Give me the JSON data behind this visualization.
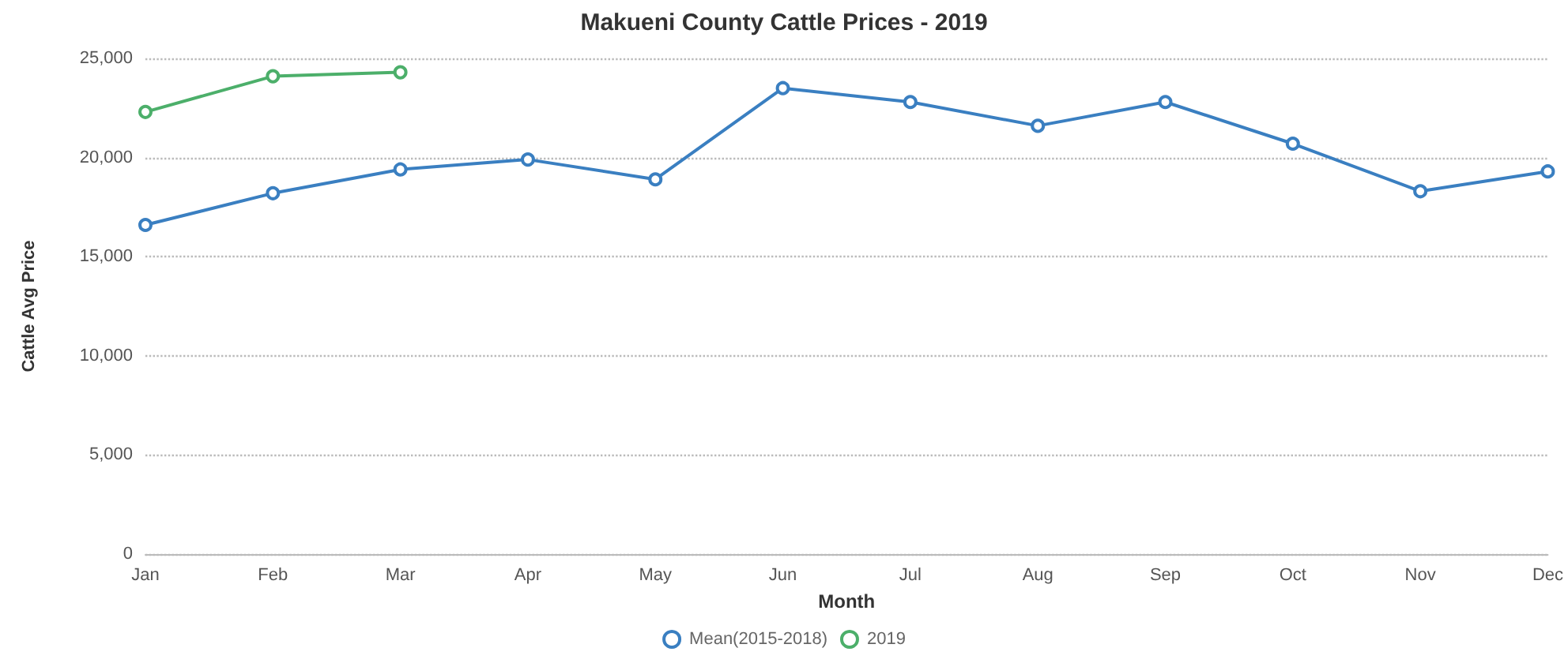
{
  "chart_data": {
    "type": "line",
    "title": "Makueni County Cattle Prices - 2019",
    "xlabel": "Month",
    "ylabel": "Cattle Avg Price",
    "categories": [
      "Jan",
      "Feb",
      "Mar",
      "Apr",
      "May",
      "Jun",
      "Jul",
      "Aug",
      "Sep",
      "Oct",
      "Nov",
      "Dec"
    ],
    "series": [
      {
        "name": "Mean(2015-2018)",
        "color": "#3a7fc1",
        "values": [
          16600,
          18200,
          19400,
          19900,
          18900,
          23500,
          22800,
          21600,
          22800,
          20700,
          18300,
          19300
        ]
      },
      {
        "name": "2019",
        "color": "#4caf6a",
        "values": [
          22300,
          24100,
          24300,
          null,
          null,
          null,
          null,
          null,
          null,
          null,
          null,
          null
        ]
      }
    ],
    "ylim": [
      0,
      25000
    ],
    "yticks": [
      {
        "value": 0,
        "label": "0"
      },
      {
        "value": 5000,
        "label": "5,000"
      },
      {
        "value": 10000,
        "label": "10,000"
      },
      {
        "value": 15000,
        "label": "15,000"
      },
      {
        "value": 20000,
        "label": "20,000"
      },
      {
        "value": 25000,
        "label": "25,000"
      }
    ],
    "grid": "y",
    "legend": "bottom",
    "marker": "circle",
    "line_style": "solid"
  }
}
